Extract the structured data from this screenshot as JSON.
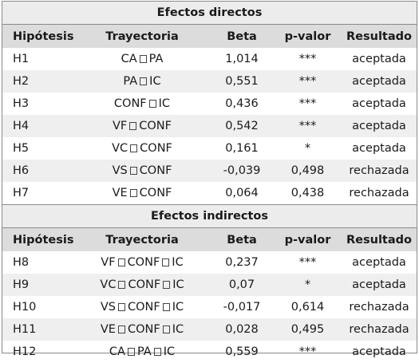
{
  "columns": [
    "Hipótesis",
    "Trayectoria",
    "Beta",
    "p-valor",
    "Resultado"
  ],
  "direct": {
    "title": "Efectos directos",
    "rows": [
      {
        "h": "H1",
        "path": [
          "CA",
          "PA"
        ],
        "beta": "1,014",
        "p": "***",
        "result": "aceptada"
      },
      {
        "h": "H2",
        "path": [
          "PA",
          "IC"
        ],
        "beta": "0,551",
        "p": "***",
        "result": "aceptada"
      },
      {
        "h": "H3",
        "path": [
          "CONF",
          "IC"
        ],
        "beta": "0,436",
        "p": "***",
        "result": "aceptada"
      },
      {
        "h": "H4",
        "path": [
          "VF",
          "CONF"
        ],
        "beta": "0,542",
        "p": "***",
        "result": "aceptada"
      },
      {
        "h": "H5",
        "path": [
          "VC",
          "CONF"
        ],
        "beta": "0,161",
        "p": "*",
        "result": "aceptada"
      },
      {
        "h": "H6",
        "path": [
          "VS",
          "CONF"
        ],
        "beta": "-0,039",
        "p": "0,498",
        "result": "rechazada"
      },
      {
        "h": "H7",
        "path": [
          "VE",
          "CONF"
        ],
        "beta": "0,064",
        "p": "0,438",
        "result": "rechazada"
      }
    ]
  },
  "indirect": {
    "title": "Efectos indirectos",
    "rows": [
      {
        "h": "H8",
        "path": [
          "VF",
          "CONF",
          "IC"
        ],
        "beta": "0,237",
        "p": "***",
        "result": "aceptada"
      },
      {
        "h": "H9",
        "path": [
          "VC",
          "CONF",
          "IC"
        ],
        "beta": "0,07",
        "p": "*",
        "result": "aceptada"
      },
      {
        "h": "H10",
        "path": [
          "VS",
          "CONF",
          "IC"
        ],
        "beta": "-0,017",
        "p": "0,614",
        "result": "rechazada"
      },
      {
        "h": "H11",
        "path": [
          "VE",
          "CONF",
          "IC"
        ],
        "beta": "0,028",
        "p": "0,495",
        "result": "rechazada"
      },
      {
        "h": "H12",
        "path": [
          "CA",
          "PA",
          "IC"
        ],
        "beta": "0,559",
        "p": "***",
        "result": "aceptada"
      }
    ]
  }
}
